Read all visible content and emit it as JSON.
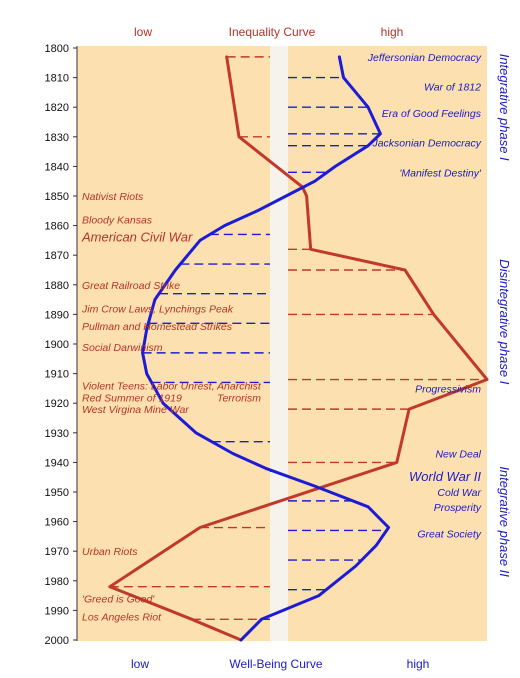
{
  "chart_data": {
    "type": "line",
    "top_labels": {
      "left": "low",
      "center": "Inequality Curve",
      "right": "high"
    },
    "bottom_labels": {
      "left": "low",
      "center": "Well-Being Curve",
      "right": "high"
    },
    "year_ticks": [
      1800,
      1810,
      1820,
      1830,
      1840,
      1850,
      1860,
      1870,
      1880,
      1890,
      1900,
      1910,
      1920,
      1930,
      1940,
      1950,
      1960,
      1970,
      1980,
      1990,
      2000
    ],
    "year_range": [
      1800,
      2000
    ],
    "value_range": [
      0,
      100
    ],
    "grid": false,
    "colors": {
      "inequality": "#c0392b",
      "wellbeing": "#1c1cd6",
      "panel": "#fce0b0",
      "left_text": "#b5332a",
      "right_text": "#1a1ac8"
    },
    "series": [
      {
        "key": "inequality",
        "name": "Inequality Curve",
        "points": [
          [
            1803,
            36.5
          ],
          [
            1830,
            39.5
          ],
          [
            1847,
            55
          ],
          [
            1850,
            56
          ],
          [
            1868,
            57
          ],
          [
            1875,
            80
          ],
          [
            1890,
            87
          ],
          [
            1912,
            100
          ],
          [
            1922,
            81
          ],
          [
            1940,
            78
          ],
          [
            1962,
            30
          ],
          [
            1982,
            8
          ],
          [
            1993,
            28
          ],
          [
            2000,
            40
          ]
        ]
      },
      {
        "key": "wellbeing",
        "name": "Well-Being Curve",
        "points": [
          [
            1803,
            64
          ],
          [
            1810,
            65
          ],
          [
            1820,
            71
          ],
          [
            1829,
            74
          ],
          [
            1833,
            71
          ],
          [
            1840,
            63
          ],
          [
            1845,
            58
          ],
          [
            1850,
            51
          ],
          [
            1855,
            44
          ],
          [
            1860,
            36
          ],
          [
            1865,
            30
          ],
          [
            1875,
            24
          ],
          [
            1885,
            19
          ],
          [
            1895,
            17
          ],
          [
            1903,
            16
          ],
          [
            1910,
            17
          ],
          [
            1920,
            21
          ],
          [
            1930,
            29
          ],
          [
            1937,
            38
          ],
          [
            1942,
            46
          ],
          [
            1948,
            58
          ],
          [
            1955,
            71
          ],
          [
            1962,
            76
          ],
          [
            1968,
            73
          ],
          [
            1975,
            68
          ],
          [
            1985,
            59
          ],
          [
            1993,
            45
          ],
          [
            2000,
            40
          ]
        ]
      }
    ],
    "left_annotations": [
      {
        "year": 1850,
        "text": "Nativist Riots",
        "size": "s"
      },
      {
        "year": 1858,
        "text": "Bloody Kansas",
        "size": "s"
      },
      {
        "year": 1864,
        "text": "American Civil War",
        "size": "l"
      },
      {
        "year": 1880,
        "text": "Great Railroad Strike",
        "size": "s"
      },
      {
        "year": 1888,
        "text": "Jim Crow Laws, Lynchings Peak",
        "size": "s"
      },
      {
        "year": 1894,
        "text": "Pullman and Homestead Strikes",
        "size": "s"
      },
      {
        "year": 1901,
        "text": "Social Darwinism",
        "size": "s"
      },
      {
        "year": 1914,
        "text": "Violent Teens: Labor Unrest, Anarchist",
        "size": "s"
      },
      {
        "year": 1918,
        "text": "Red Summer of 1919",
        "size": "s"
      },
      {
        "year": 1918,
        "text": "Terrorism",
        "size": "s",
        "x_offset": 135
      },
      {
        "year": 1922,
        "text": "West Virgina Mine War",
        "size": "s"
      },
      {
        "year": 1970,
        "text": "Urban Riots",
        "size": "s"
      },
      {
        "year": 1986,
        "text": "'Greed is Good'",
        "size": "s"
      },
      {
        "year": 1992,
        "text": "Los Angeles Riot",
        "size": "s"
      }
    ],
    "right_annotations": [
      {
        "year": 1803,
        "text": "Jeffersonian Democracy",
        "size": "s"
      },
      {
        "year": 1813,
        "text": "War of 1812",
        "size": "s"
      },
      {
        "year": 1822,
        "text": "Era of Good Feelings",
        "size": "s"
      },
      {
        "year": 1832,
        "text": "Jacksonian Democracy",
        "size": "s"
      },
      {
        "year": 1842,
        "text": "'Manifest Destiny'",
        "size": "s"
      },
      {
        "year": 1915,
        "text": "Progressivism",
        "size": "s"
      },
      {
        "year": 1937,
        "text": "New Deal",
        "size": "s"
      },
      {
        "year": 1945,
        "text": "World War II",
        "size": "l"
      },
      {
        "year": 1950,
        "text": "Cold War",
        "size": "s"
      },
      {
        "year": 1955,
        "text": "Prosperity",
        "size": "s"
      },
      {
        "year": 1964,
        "text": "Great Society",
        "size": "s"
      }
    ],
    "phases": [
      {
        "text": "Integrative phase I",
        "year_from": 1800,
        "year_to": 1840
      },
      {
        "text": "Disintegrative phase I",
        "year_from": 1865,
        "year_to": 1920
      },
      {
        "text": "Integrative phase II",
        "year_from": 1935,
        "year_to": 1985
      }
    ],
    "red_dash_years": [
      1803,
      1830,
      1868,
      1875,
      1890,
      1912,
      1922,
      1940,
      1962,
      1982,
      1993
    ],
    "blue_dash_years": [
      1810,
      1820,
      1829,
      1833,
      1842,
      1853,
      1863,
      1873,
      1883,
      1893,
      1903,
      1913,
      1933,
      1943,
      1953,
      1963,
      1973,
      1983,
      1993
    ]
  }
}
